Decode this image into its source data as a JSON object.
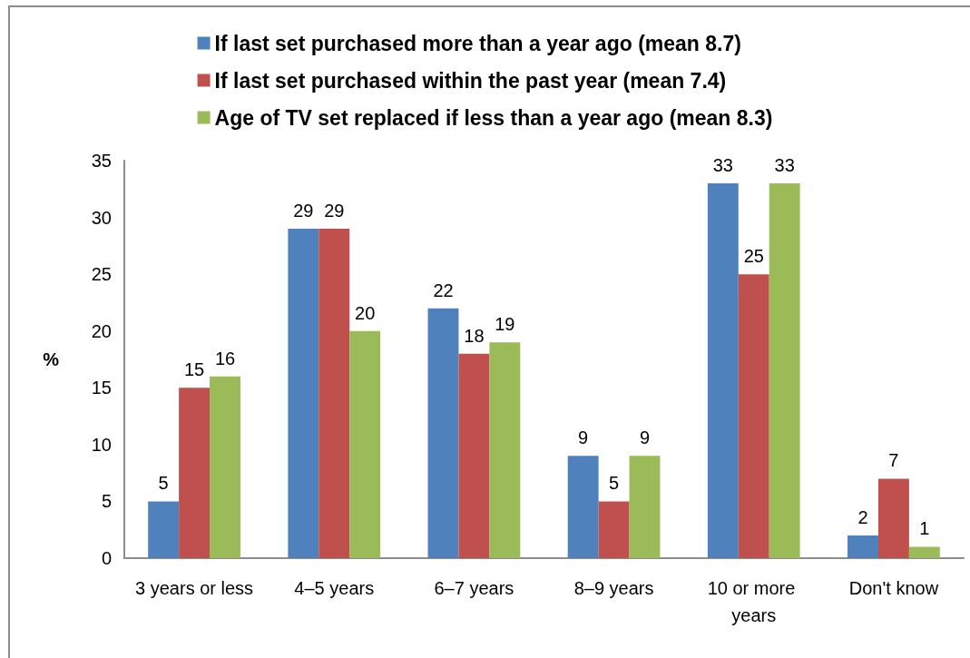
{
  "chart_data": {
    "type": "bar",
    "categories": [
      "3 years or less",
      "4–5 years",
      "6–7 years",
      "8–9 years",
      "10 or more years",
      "Don't know"
    ],
    "series": [
      {
        "name": "If last set purchased more than a year ago (mean 8.7)",
        "color": "#4f81bd",
        "values": [
          5,
          29,
          22,
          9,
          33,
          2
        ]
      },
      {
        "name": "If last set purchased within the past year (mean 7.4)",
        "color": "#c0504d",
        "values": [
          15,
          29,
          18,
          5,
          25,
          7
        ]
      },
      {
        "name": "Age of TV set replaced if less than a year ago (mean 8.3)",
        "color": "#9bbb59",
        "values": [
          16,
          20,
          19,
          9,
          33,
          1
        ]
      }
    ],
    "ylabel": "%",
    "ylim": [
      0,
      35
    ],
    "yticks": [
      0,
      5,
      10,
      15,
      20,
      25,
      30,
      35
    ],
    "data_labels": true,
    "legend": "top"
  }
}
